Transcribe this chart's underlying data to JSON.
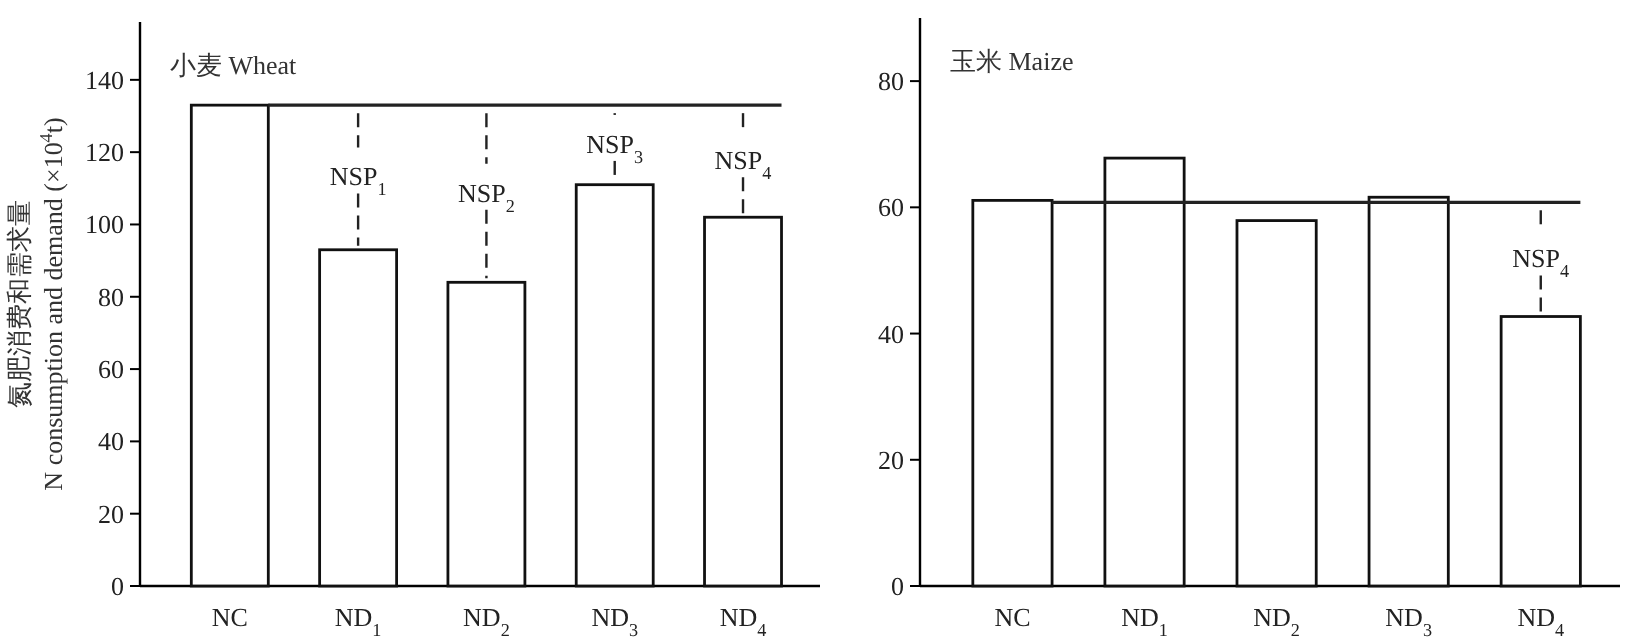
{
  "chart_data": [
    {
      "type": "bar",
      "title": "小麦 Wheat",
      "ylabel": "氮肥消费和需求量\nN consumption and demand (×10$^{4}$t)",
      "categories": [
        "NC",
        "ND$_{1}$",
        "ND$_{2}$",
        "ND$_{3}$",
        "ND$_{4}$"
      ],
      "values": [
        133,
        93,
        84,
        111,
        102
      ],
      "color": "#ffffff",
      "ylim": [
        0,
        156
      ],
      "yticks": [
        0,
        20,
        40,
        60,
        80,
        100,
        120,
        140
      ],
      "ref_lines": [
        {
          "axis": "y",
          "value": 133
        }
      ],
      "annotations": [
        {
          "text": "NSP$_{1}$",
          "x": "ND$_{1}$",
          "y": 93
        },
        {
          "text": "NSP$_{2}$",
          "x": "ND$_{2}$",
          "y": 84
        },
        {
          "text": "NSP$_{3}$",
          "x": "ND$_{3}$",
          "y": 111
        },
        {
          "text": "NSP$_{4}$",
          "x": "ND$_{4}$",
          "y": 102
        }
      ]
    },
    {
      "type": "bar",
      "title": "玉米 Maize",
      "categories": [
        "NC",
        "ND$_{1}$",
        "ND$_{2}$",
        "ND$_{3}$",
        "ND$_{4}$"
      ],
      "values": [
        61.1,
        67.8,
        57.9,
        61.6,
        42.7
      ],
      "color": "#ffffff",
      "ylim": [
        0,
        90
      ],
      "yticks": [
        0,
        20,
        40,
        60,
        80
      ],
      "ref_lines": [
        {
          "axis": "y",
          "value": 60.8
        }
      ],
      "annotations": [
        {
          "text": "NSP$_{4}$",
          "x": "ND$_{4}$",
          "y": 42.7
        }
      ]
    }
  ]
}
